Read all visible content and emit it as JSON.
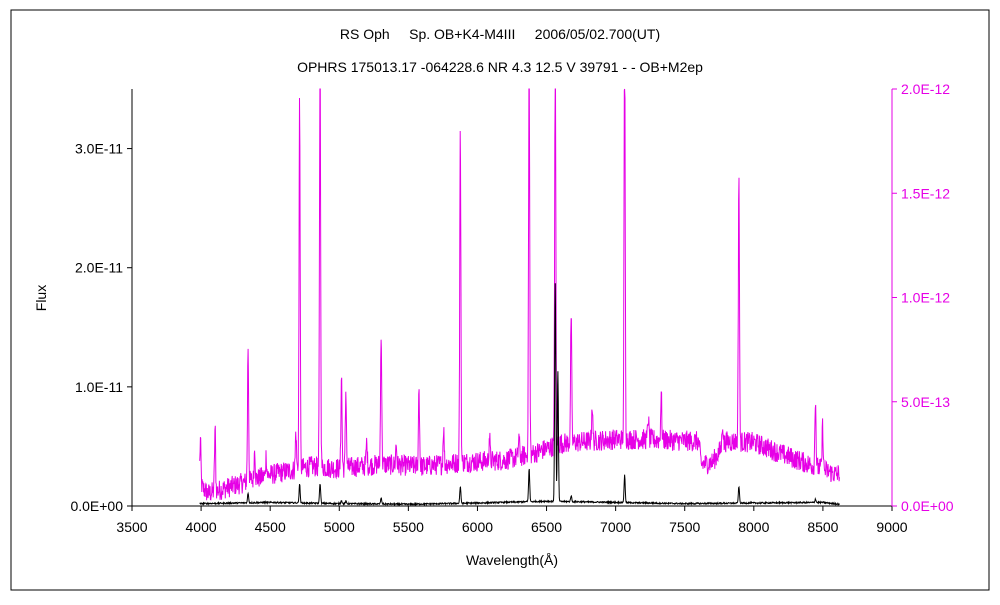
{
  "chart_data": {
    "type": "line",
    "title": "RS Oph     Sp. OB+K4-M4III     2006/05/02.700(UT)",
    "subtitle": "OPHRS 175013.17 -064228.6 NR 4.3 12.5 V 39791 - - OB+M2ep",
    "xlabel": "Wavelength(Å)",
    "ylabel": "Flux",
    "xlim": [
      3500,
      9000
    ],
    "ylim_left": [
      0,
      3.5e-11
    ],
    "ylim_right": [
      0,
      2e-12
    ],
    "x_ticks": [
      "3500",
      "4000",
      "4500",
      "5000",
      "5500",
      "6000",
      "6500",
      "7000",
      "7500",
      "8000",
      "8500",
      "9000"
    ],
    "y_left_ticks": [
      "0.0E+00",
      "1.0E-11",
      "2.0E-11",
      "3.0E-11"
    ],
    "y_right_ticks": [
      "0.0E+00",
      "5.0E-13",
      "1.0E-12",
      "1.5E-12",
      "2.0E-12"
    ],
    "grid": false,
    "series": [
      {
        "axis": "right",
        "color": "#e600e6",
        "continuum": [
          [
            3990,
            1e-13
          ],
          [
            4050,
            6e-14
          ],
          [
            4200,
            9e-14
          ],
          [
            4500,
            1.5e-13
          ],
          [
            4800,
            1.9e-13
          ],
          [
            5000,
            1.8e-13
          ],
          [
            5300,
            2e-13
          ],
          [
            5600,
            1.9e-13
          ],
          [
            5900,
            2.1e-13
          ],
          [
            6200,
            2.2e-13
          ],
          [
            6400,
            2.5e-13
          ],
          [
            6600,
            3e-13
          ],
          [
            6800,
            3.1e-13
          ],
          [
            7000,
            3.2e-13
          ],
          [
            7200,
            3.2e-13
          ],
          [
            7400,
            3.15e-13
          ],
          [
            7600,
            3.1e-13
          ],
          [
            7620,
            2e-13
          ],
          [
            7700,
            2.1e-13
          ],
          [
            7800,
            3.1e-13
          ],
          [
            8000,
            3.05e-13
          ],
          [
            8200,
            2.5e-13
          ],
          [
            8400,
            2e-13
          ],
          [
            8600,
            1.5e-13
          ],
          [
            8620,
            1.6e-13
          ]
        ],
        "lines": [
          [
            3995,
            2.2e-13
          ],
          [
            4101,
            3e-13
          ],
          [
            4340,
            6.5e-13
          ],
          [
            4388,
            1.5e-13
          ],
          [
            4471,
            1e-13
          ],
          [
            4686,
            1.8e-13
          ],
          [
            4713,
            1.8e-12
          ],
          [
            4861,
            2e-12
          ],
          [
            5016,
            4.5e-13
          ],
          [
            5048,
            3.7e-13
          ],
          [
            5198,
            1.1e-13
          ],
          [
            5303,
            6.5e-13
          ],
          [
            5412,
            1e-13
          ],
          [
            5577,
            3.8e-13
          ],
          [
            5755,
            1.8e-13
          ],
          [
            5876,
            1.6e-12
          ],
          [
            6087,
            1.2e-13
          ],
          [
            6300,
            1e-13
          ],
          [
            6374,
            2e-12
          ],
          [
            6563,
            2e-12
          ],
          [
            6678,
            6.2e-13
          ],
          [
            6830,
            1.8e-13
          ],
          [
            7065,
            2e-12
          ],
          [
            7236,
            1.1e-13
          ],
          [
            7330,
            2.2e-13
          ],
          [
            7774,
            1.2e-13
          ],
          [
            7892,
            1.3e-12
          ],
          [
            8446,
            3.4e-13
          ],
          [
            8498,
            2.1e-13
          ]
        ],
        "noise_amplitude": 5e-14
      },
      {
        "axis": "left",
        "color": "#000000",
        "continuum": [
          [
            3990,
            2e-13
          ],
          [
            4500,
            3e-13
          ],
          [
            5000,
            2e-13
          ],
          [
            5500,
            1.5e-13
          ],
          [
            6000,
            2.5e-13
          ],
          [
            6500,
            4e-13
          ],
          [
            7000,
            3e-13
          ],
          [
            7500,
            2e-13
          ],
          [
            8000,
            2.5e-13
          ],
          [
            8500,
            3e-13
          ],
          [
            8620,
            1.5e-13
          ]
        ],
        "lines": [
          [
            4340,
            8e-13
          ],
          [
            4713,
            1.6e-12
          ],
          [
            4861,
            1.7e-12
          ],
          [
            5016,
            3e-13
          ],
          [
            5048,
            2e-13
          ],
          [
            5303,
            5e-13
          ],
          [
            5876,
            1.4e-12
          ],
          [
            6374,
            2.8e-12
          ],
          [
            6563,
            1.85e-11
          ],
          [
            6582,
            1.1e-11
          ],
          [
            6678,
            5e-13
          ],
          [
            7065,
            2.3e-12
          ],
          [
            7892,
            1.4e-12
          ],
          [
            8446,
            3e-13
          ]
        ],
        "noise_amplitude": 6e-14
      }
    ]
  }
}
